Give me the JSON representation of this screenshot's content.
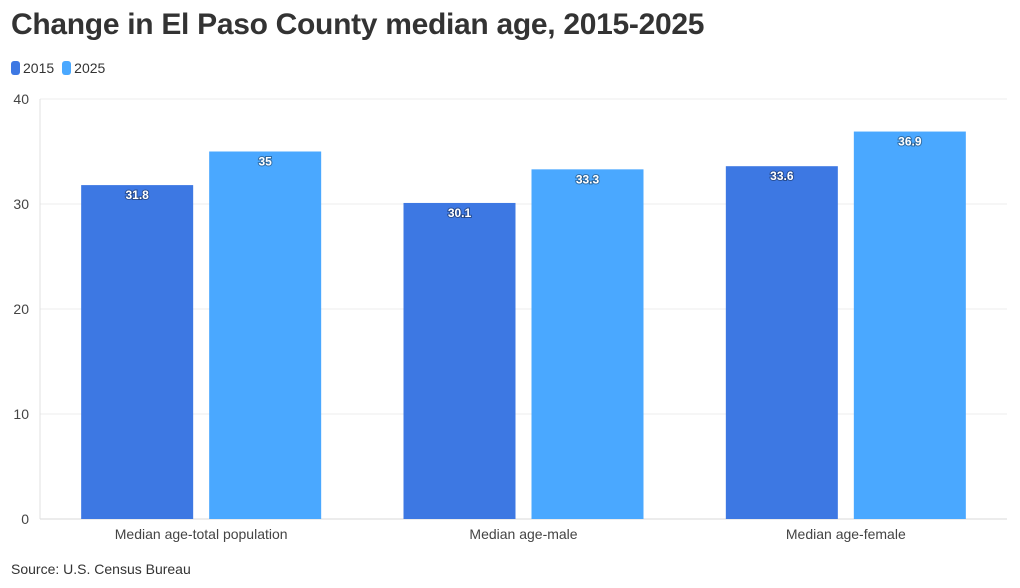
{
  "title": "Change in El Paso County median age, 2015-2025",
  "source": "Source: U.S. Census Bureau",
  "legend": [
    {
      "label": "2015",
      "color": "#3d78e3"
    },
    {
      "label": "2025",
      "color": "#4aa8ff"
    }
  ],
  "chart_data": {
    "type": "bar",
    "title": "Change in El Paso County median age, 2015-2025",
    "xlabel": "",
    "ylabel": "",
    "ylim": [
      0,
      40
    ],
    "yticks": [
      0,
      10,
      20,
      30,
      40
    ],
    "grid": true,
    "legend_position": "top-left",
    "categories": [
      "Median age-total population",
      "Median age-male",
      "Median age-female"
    ],
    "series": [
      {
        "name": "2015",
        "color": "#3d78e3",
        "values": [
          31.8,
          30.1,
          33.6
        ]
      },
      {
        "name": "2025",
        "color": "#4aa8ff",
        "values": [
          35,
          33.3,
          36.9
        ]
      }
    ]
  }
}
